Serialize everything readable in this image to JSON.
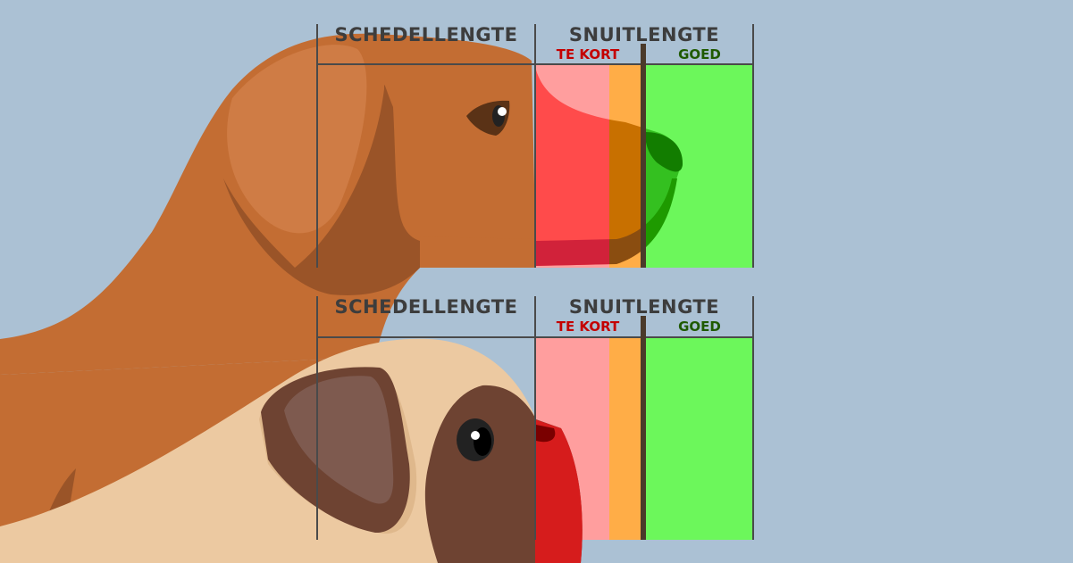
{
  "panels": [
    {
      "skull_label": "SCHEDELLENGTE",
      "snout_label": "SNUITLENGTE",
      "short_label": "TE KORT",
      "good_label": "GOED"
    },
    {
      "skull_label": "SCHEDELLENGTE",
      "snout_label": "SNUITLENGTE",
      "short_label": "TE KORT",
      "good_label": "GOED"
    }
  ],
  "colors": {
    "background": "#abc1d4",
    "too_short_zone": "#ff9e9e",
    "borderline_zone": "#ffad47",
    "good_zone": "#6cf75b",
    "short_label": "#c40000",
    "good_label": "#1f5a00",
    "dog_fur": "#c36d33",
    "pug_fur": "#ecc9a1",
    "pug_mask": "#6e4332"
  }
}
